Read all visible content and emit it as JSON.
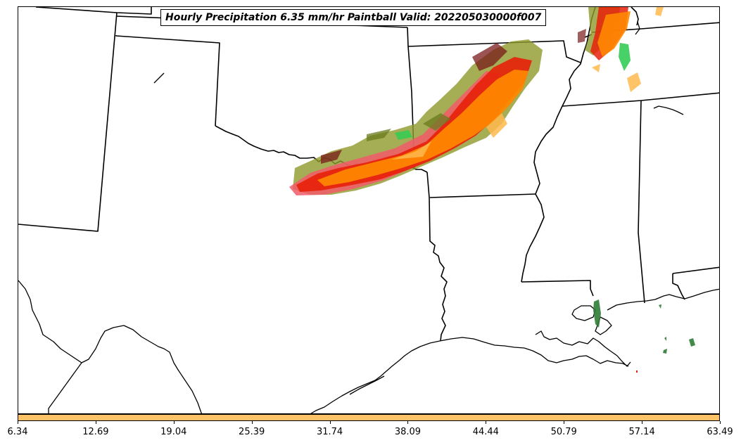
{
  "title": "Hourly Precipitation 6.35 mm/hr Paintball Valid: 202205030000f007",
  "colorbar": {
    "ticks": [
      "6.34",
      "12.69",
      "19.04",
      "25.39",
      "31.74",
      "38.09",
      "44.44",
      "50.79",
      "57.14",
      "63.49"
    ],
    "color": "#ffc266"
  },
  "colors": {
    "border": "#000000",
    "paint_orange": "#ff8800",
    "paint_red": "#e8200a",
    "paint_pink": "#f25a6b",
    "paint_olive": "#8f9a2a",
    "paint_green": "#33cc55",
    "paint_darkgreen": "#2f7d36",
    "paint_darkred": "#7a1a1a",
    "paint_light_orange": "#ffb84d"
  }
}
